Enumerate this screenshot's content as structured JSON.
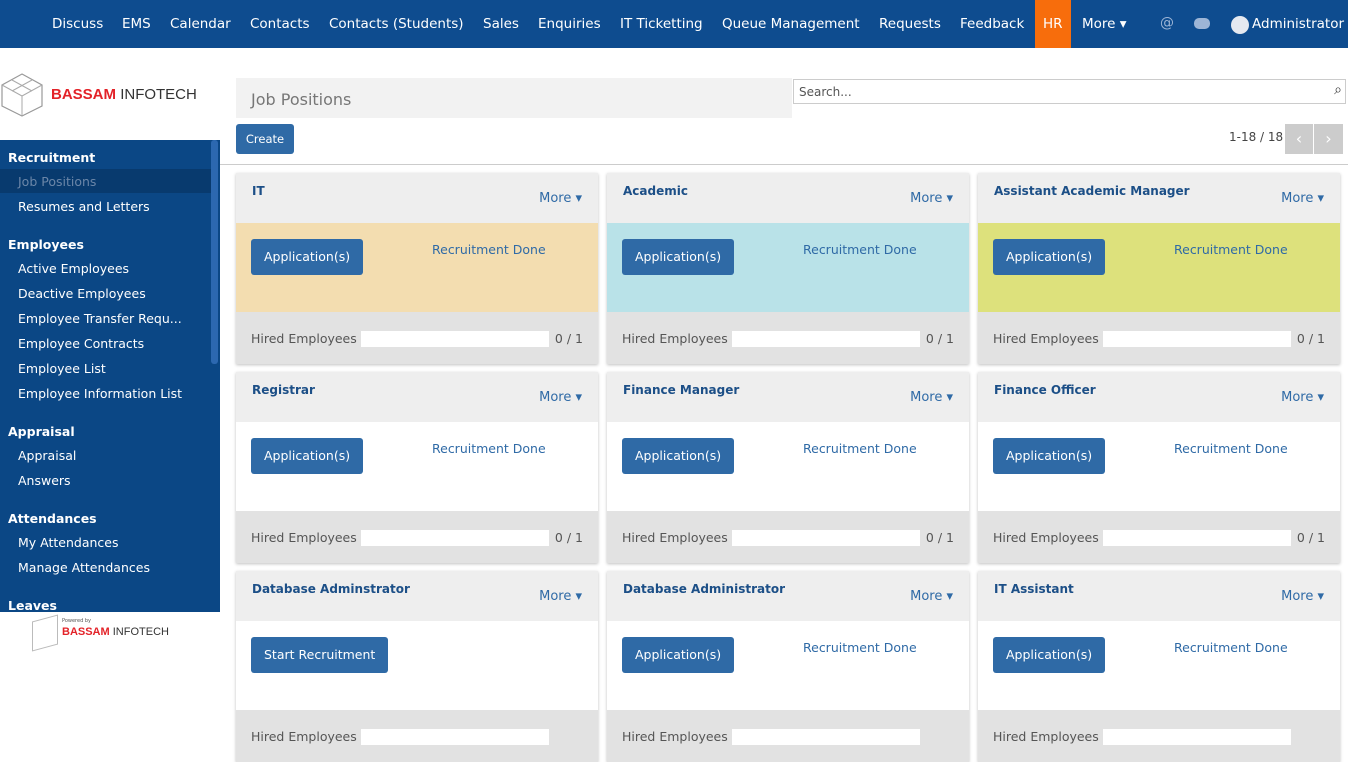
{
  "nav": {
    "items": [
      "Discuss",
      "EMS",
      "Calendar",
      "Contacts",
      "Contacts (Students)",
      "Sales",
      "Enquiries",
      "IT Ticketting",
      "Queue Management",
      "Requests",
      "Feedback",
      "HR",
      "More"
    ],
    "active": "HR",
    "user": "Administrator"
  },
  "logo": {
    "brand": "BASSAM",
    "suffix": "INFOTECH"
  },
  "sidebar": {
    "sections": [
      {
        "title": "Recruitment",
        "items": [
          "Job Positions",
          "Resumes and Letters"
        ]
      },
      {
        "title": "Employees",
        "items": [
          "Active Employees",
          "Deactive Employees",
          "Employee Transfer Requ...",
          "Employee Contracts",
          "Employee List",
          "Employee Information List"
        ]
      },
      {
        "title": "Appraisal",
        "items": [
          "Appraisal",
          "Answers"
        ]
      },
      {
        "title": "Attendances",
        "items": [
          "My Attendances",
          "Manage Attendances"
        ]
      },
      {
        "title": "Leaves",
        "items": []
      }
    ],
    "active": "Job Positions"
  },
  "footer": {
    "powered": "Powered by",
    "brand": "BASSAM",
    "suffix": "INFOTECH"
  },
  "header": {
    "title": "Job Positions",
    "search": "Search...",
    "create": "Create",
    "pager": "1-18 / 18"
  },
  "card_labels": {
    "more": "More",
    "hired": "Hired Employees"
  },
  "cards": [
    {
      "title": "IT",
      "button": "Application(s)",
      "status": "Recruitment Done",
      "hired": "0 / 1",
      "color": "#f3ddb0"
    },
    {
      "title": "Academic",
      "button": "Application(s)",
      "status": "Recruitment Done",
      "hired": "0 / 1",
      "color": "#b9e2e8"
    },
    {
      "title": "Assistant Academic Manager",
      "button": "Application(s)",
      "status": "Recruitment Done",
      "hired": "0 / 1",
      "color": "#dde17c"
    },
    {
      "title": "Registrar",
      "button": "Application(s)",
      "status": "Recruitment Done",
      "hired": "0 / 1",
      "color": "#ffffff"
    },
    {
      "title": "Finance Manager",
      "button": "Application(s)",
      "status": "Recruitment Done",
      "hired": "0 / 1",
      "color": "#ffffff"
    },
    {
      "title": "Finance Officer",
      "button": "Application(s)",
      "status": "Recruitment Done",
      "hired": "0 / 1",
      "color": "#ffffff"
    },
    {
      "title": "Database Adminstrator",
      "button": "Start Recruitment",
      "color": "#ffffff"
    },
    {
      "title": "Database Administrator",
      "button": "Application(s)",
      "status": "Recruitment Done",
      "color": "#ffffff"
    },
    {
      "title": "IT Assistant",
      "button": "Application(s)",
      "status": "Recruitment Done",
      "color": "#ffffff"
    }
  ]
}
